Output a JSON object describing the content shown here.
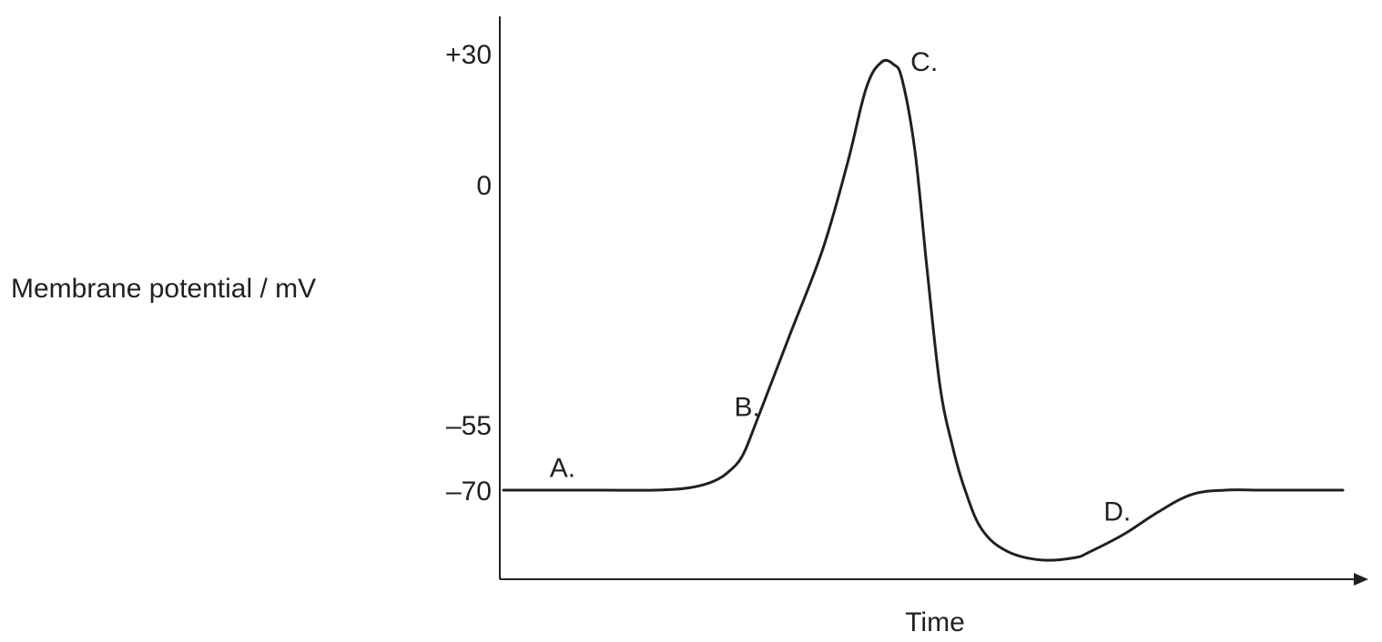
{
  "chart_data": {
    "type": "line",
    "title": "",
    "xlabel": "Time",
    "ylabel": "Membrane potential / mV",
    "y_ticks": [
      {
        "value": 30,
        "label": "+30"
      },
      {
        "value": 0,
        "label": "0"
      },
      {
        "value": -55,
        "label": "–55"
      },
      {
        "value": -70,
        "label": "–70"
      }
    ],
    "ylim": [
      -86,
      42
    ],
    "xlim": [
      0,
      100
    ],
    "x_ticks": [],
    "grid": false,
    "legend": "none",
    "series": [
      {
        "x": [
          0,
          6,
          12,
          18,
          22,
          25,
          27,
          28.5,
          30,
          34,
          38,
          41,
          43.2,
          45,
          46.5,
          47.5,
          49,
          50.5,
          52,
          53.5,
          55,
          57,
          60,
          64,
          68,
          70,
          74,
          78,
          82,
          86,
          90,
          95,
          100
        ],
        "y": [
          -70,
          -70,
          -70,
          -70,
          -69.5,
          -68,
          -65.5,
          -62,
          -55,
          -35,
          -15,
          5,
          22,
          28,
          27.5,
          24,
          8,
          -20,
          -46,
          -60,
          -70,
          -79,
          -84,
          -86,
          -85.5,
          -84,
          -80,
          -75,
          -71,
          -70,
          -70,
          -70,
          -70
        ]
      }
    ],
    "annotations": [
      {
        "text": "A.",
        "x": 5.5,
        "y": -67
      },
      {
        "text": "B.",
        "x": 27.5,
        "y": -53
      },
      {
        "text": "C.",
        "x": 48.5,
        "y": 26
      },
      {
        "text": "D.",
        "x": 71.5,
        "y": -77
      }
    ]
  }
}
